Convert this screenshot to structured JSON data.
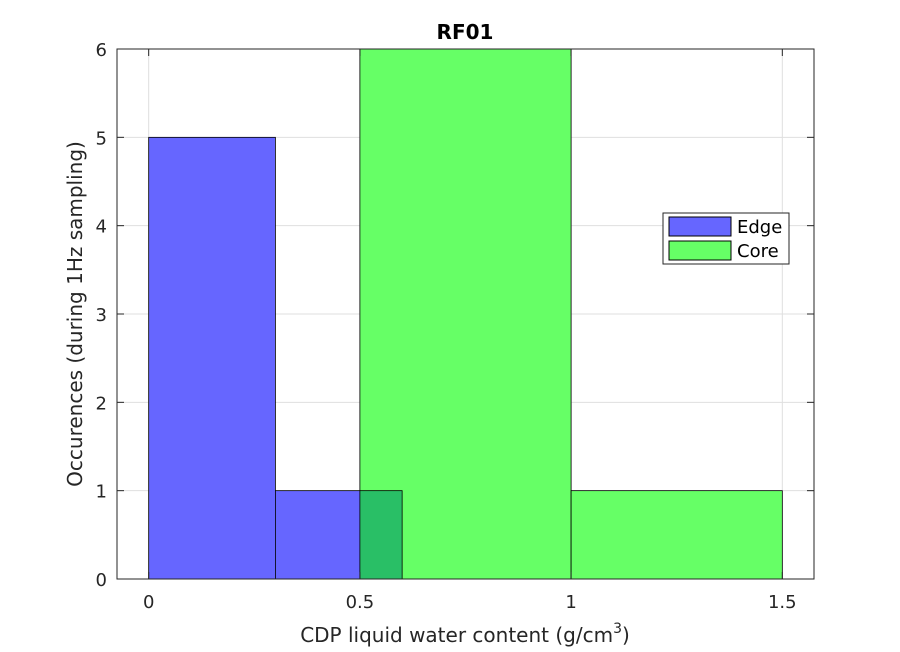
{
  "chart_data": {
    "type": "bar",
    "title": "RF01",
    "xlabel_main": "CDP liquid water content (g/cm",
    "xlabel_sup": "3",
    "xlabel_end": ")",
    "ylabel": "Occurences (during 1Hz sampling)",
    "xlim": [
      -0.075,
      1.575
    ],
    "ylim": [
      0,
      6
    ],
    "x_ticks": [
      0,
      0.5,
      1,
      1.5
    ],
    "x_tick_labels": [
      "0",
      "0.5",
      "1",
      "1.5"
    ],
    "y_ticks": [
      0,
      1,
      2,
      3,
      4,
      5,
      6
    ],
    "y_tick_labels": [
      "0",
      "1",
      "2",
      "3",
      "4",
      "5",
      "6"
    ],
    "grid": true,
    "legend_position": "right",
    "series": [
      {
        "name": "Edge",
        "color": "#6666ff",
        "bins": [
          {
            "x0": 0,
            "x1": 0.3,
            "count": 5
          },
          {
            "x0": 0.3,
            "x1": 0.6,
            "count": 1
          }
        ]
      },
      {
        "name": "Core",
        "color": "#66ff66",
        "bins": [
          {
            "x0": 0.5,
            "x1": 1.0,
            "count": 6
          },
          {
            "x0": 1.0,
            "x1": 1.5,
            "count": 1
          }
        ]
      }
    ],
    "overlap_color": "#29bf66"
  }
}
